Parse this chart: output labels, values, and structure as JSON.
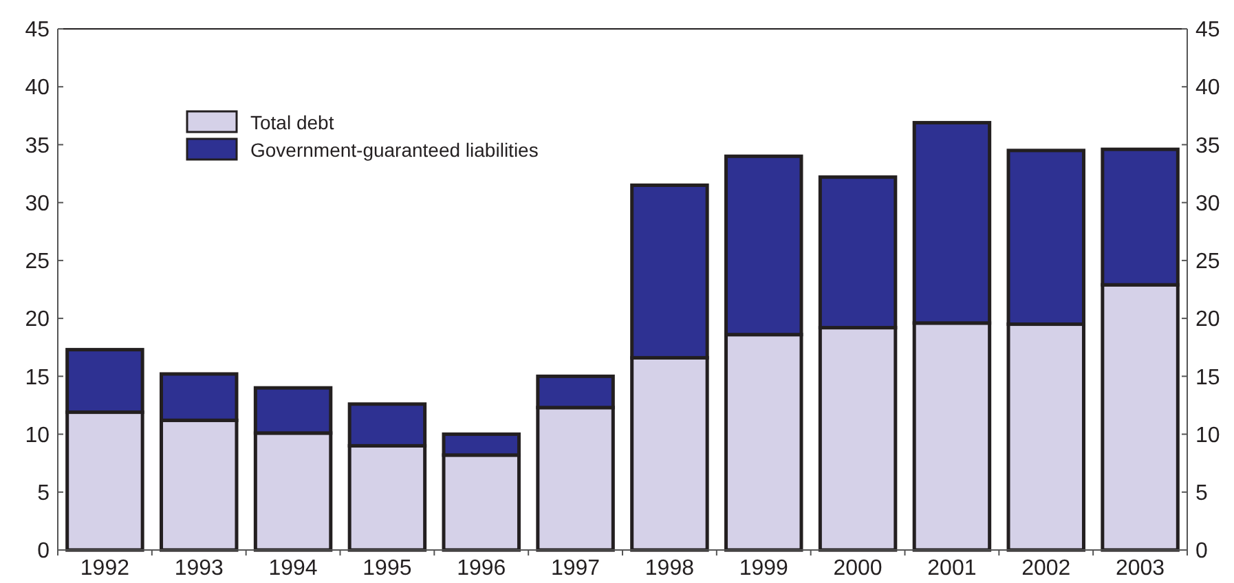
{
  "chart_data": {
    "type": "bar",
    "stacked": true,
    "categories": [
      "1992",
      "1993",
      "1994",
      "1995",
      "1996",
      "1997",
      "1998",
      "1999",
      "2000",
      "2001",
      "2002",
      "2003"
    ],
    "series": [
      {
        "name": "Total debt",
        "color": "#d5d1e8",
        "values": [
          11.9,
          11.2,
          10.1,
          9.0,
          8.2,
          12.3,
          16.6,
          18.6,
          19.2,
          19.6,
          19.5,
          22.9
        ]
      },
      {
        "name": "Government-guaranteed liabilities",
        "color": "#2e3192",
        "values": [
          5.4,
          4.0,
          3.9,
          3.6,
          1.8,
          2.7,
          14.9,
          15.4,
          13.0,
          17.3,
          15.0,
          11.7
        ]
      }
    ],
    "ylim": [
      0,
      45
    ],
    "yticks": [
      0,
      5,
      10,
      15,
      20,
      25,
      30,
      35,
      40,
      45
    ],
    "y2lim": [
      0,
      45
    ],
    "y2ticks": [
      0,
      5,
      10,
      15,
      20,
      25,
      30,
      35,
      40,
      45
    ],
    "grid": false,
    "legend": "top left"
  }
}
